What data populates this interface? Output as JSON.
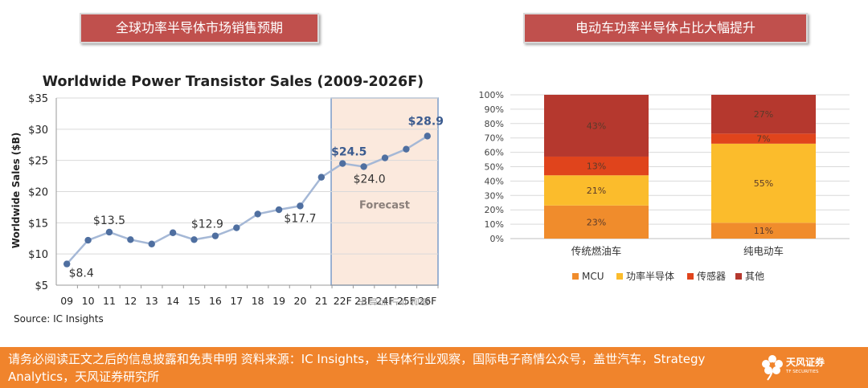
{
  "headers": {
    "left": "全球功率半导体市场销售预期",
    "right": "电动车功率半导体占比大幅提升"
  },
  "colors": {
    "header_bg": "#c0504d",
    "footer_bg": "#f0842c",
    "line": "#a5b8d6",
    "marker": "#4f6fa0",
    "forecast_fill": "#fbe9dd",
    "forecast_border": "#7b9cc9"
  },
  "chart_data": [
    {
      "type": "line",
      "title": "Worldwide Power Transistor Sales (2009-2026F)",
      "ylabel": "Worldwide Sales ($B)",
      "ylim": [
        5,
        35
      ],
      "yticks": [
        "$5",
        "$10",
        "$15",
        "$20",
        "$25",
        "$30",
        "$35"
      ],
      "x": [
        "09",
        "10",
        "11",
        "12",
        "13",
        "14",
        "15",
        "16",
        "17",
        "18",
        "19",
        "20",
        "21",
        "22F",
        "23F",
        "24F",
        "25F",
        "26F"
      ],
      "xtick_labels": [
        "09",
        "10",
        "11",
        "12",
        "13",
        "14",
        "15",
        "16",
        "17",
        "18",
        "19",
        "20",
        "21",
        "22F",
        "23F",
        "24F",
        "25F",
        "26F"
      ],
      "values": [
        8.4,
        12.2,
        13.5,
        12.3,
        11.6,
        13.4,
        12.3,
        12.9,
        14.2,
        16.4,
        17.1,
        17.7,
        22.3,
        24.5,
        24.0,
        25.4,
        26.8,
        28.9
      ],
      "data_labels": [
        {
          "index": 0,
          "text": "$8.4"
        },
        {
          "index": 2,
          "text": "$13.5"
        },
        {
          "index": 7,
          "text": "$12.9"
        },
        {
          "index": 11,
          "text": "$17.7"
        },
        {
          "index": 13,
          "text": "$24.5"
        },
        {
          "index": 14,
          "text": "$24.0"
        },
        {
          "index": 17,
          "text": "$28.9"
        }
      ],
      "forecast_label": "Forecast",
      "source": "Source: IC Insights",
      "watermark": "半导体行业观察",
      "grid": true
    },
    {
      "type": "bar",
      "stacked": true,
      "categories": [
        "传统燃油车",
        "纯电动车"
      ],
      "series": [
        {
          "name": "MCU",
          "color": "#f08c2c",
          "values": [
            23,
            11
          ]
        },
        {
          "name": "功率半导体",
          "color": "#fbbc2c",
          "values": [
            21,
            55
          ]
        },
        {
          "name": "传感器",
          "color": "#e0441c",
          "values": [
            13,
            7
          ]
        },
        {
          "name": "其他",
          "color": "#b5382e",
          "values": [
            43,
            27
          ]
        }
      ],
      "ylim": [
        0,
        100
      ],
      "yticks": [
        "0%",
        "10%",
        "20%",
        "30%",
        "40%",
        "50%",
        "60%",
        "70%",
        "80%",
        "90%",
        "100%"
      ],
      "legend_position": "bottom",
      "grid": true
    }
  ],
  "footer": {
    "text": "请务必阅读正文之后的信息披露和免责申明  资料来源：IC Insights，半导体行业观察，国际电子商情公众号，盖世汽车，Strategy Analytics，天风证券研究所",
    "logo_cn": "天风证券",
    "logo_en": "TF SECURITIES"
  }
}
